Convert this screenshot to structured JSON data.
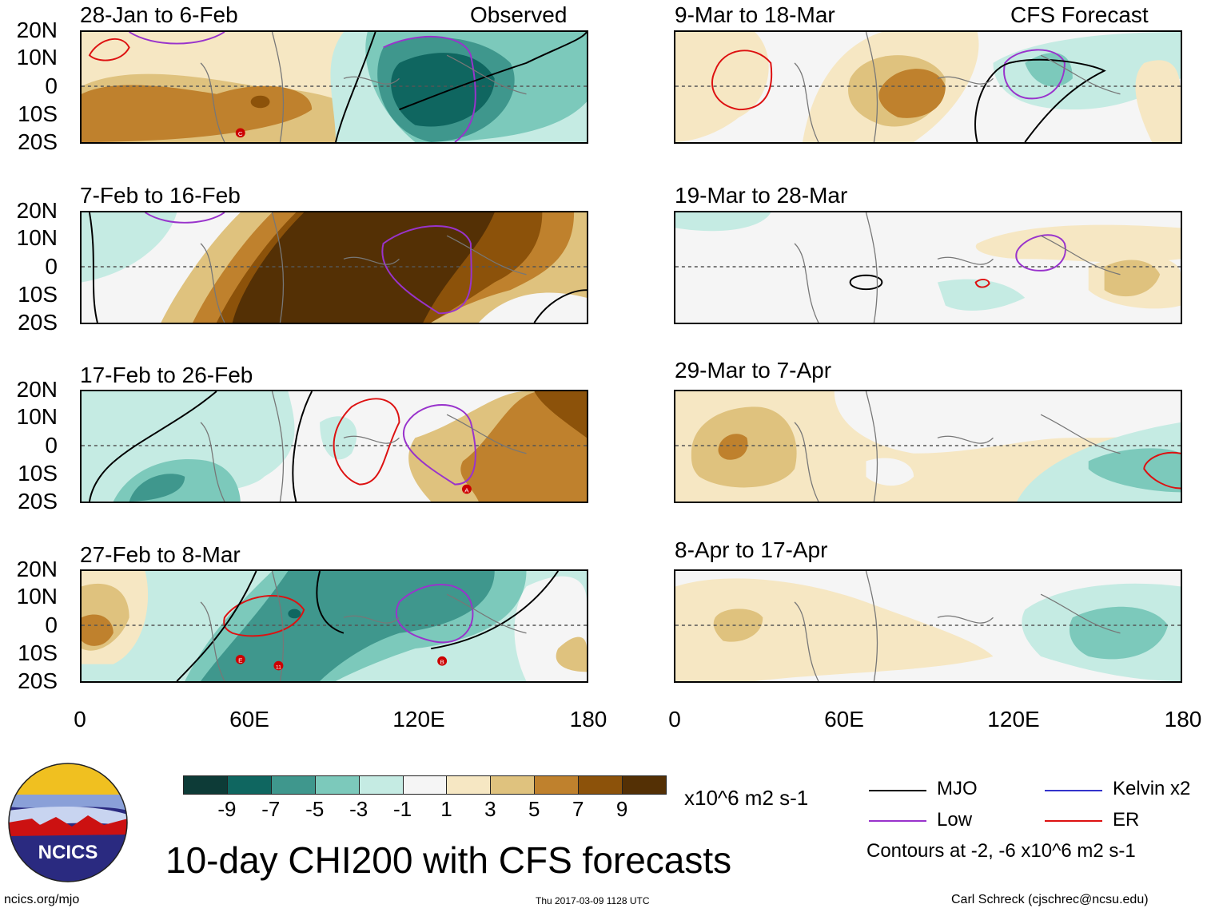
{
  "header": {
    "left_label": "Observed",
    "right_label": "CFS Forecast"
  },
  "panels": [
    {
      "title": "28-Jan to 6-Feb"
    },
    {
      "title": "7-Feb to 16-Feb"
    },
    {
      "title": "17-Feb to 26-Feb"
    },
    {
      "title": "27-Feb to 8-Mar"
    },
    {
      "title": "9-Mar to 18-Mar"
    },
    {
      "title": "19-Mar to 28-Mar"
    },
    {
      "title": "29-Mar to 7-Apr"
    },
    {
      "title": "8-Apr to 17-Apr"
    }
  ],
  "lat_labels": [
    "20N",
    "10N",
    "0",
    "10S",
    "20S"
  ],
  "lon_labels": [
    "0",
    "60E",
    "120E",
    "180"
  ],
  "colorbar": {
    "colors": [
      "#0d3b37",
      "#0f6660",
      "#3f978d",
      "#7cc9bb",
      "#c5ebe3",
      "#f5f5f5",
      "#f6e7c3",
      "#dfc27e",
      "#bf812d",
      "#8c520a",
      "#543005"
    ],
    "ticks": [
      "-9",
      "-7",
      "-5",
      "-3",
      "-1",
      "1",
      "3",
      "5",
      "7",
      "9"
    ],
    "units": "x10^6 m2 s-1"
  },
  "legend": {
    "items": [
      {
        "label": "MJO",
        "color": "#000000"
      },
      {
        "label": "Kelvin x2",
        "color": "#3333cc"
      },
      {
        "label": "Low",
        "color": "#9933cc"
      },
      {
        "label": "ER",
        "color": "#dd1111"
      }
    ],
    "contours_note": "Contours at -2, -6 x10^6 m2 s-1"
  },
  "logo": {
    "text": "NCICS"
  },
  "main_title": "10-day CHI200 with CFS forecasts",
  "footer": {
    "url": "ncics.org/mjo",
    "timestamp": "Thu 2017-03-09 1128 UTC",
    "author": "Carl Schreck (cjschrec@ncsu.edu)"
  },
  "storm_markers": [
    "C",
    "A",
    "E",
    "11",
    "B"
  ]
}
